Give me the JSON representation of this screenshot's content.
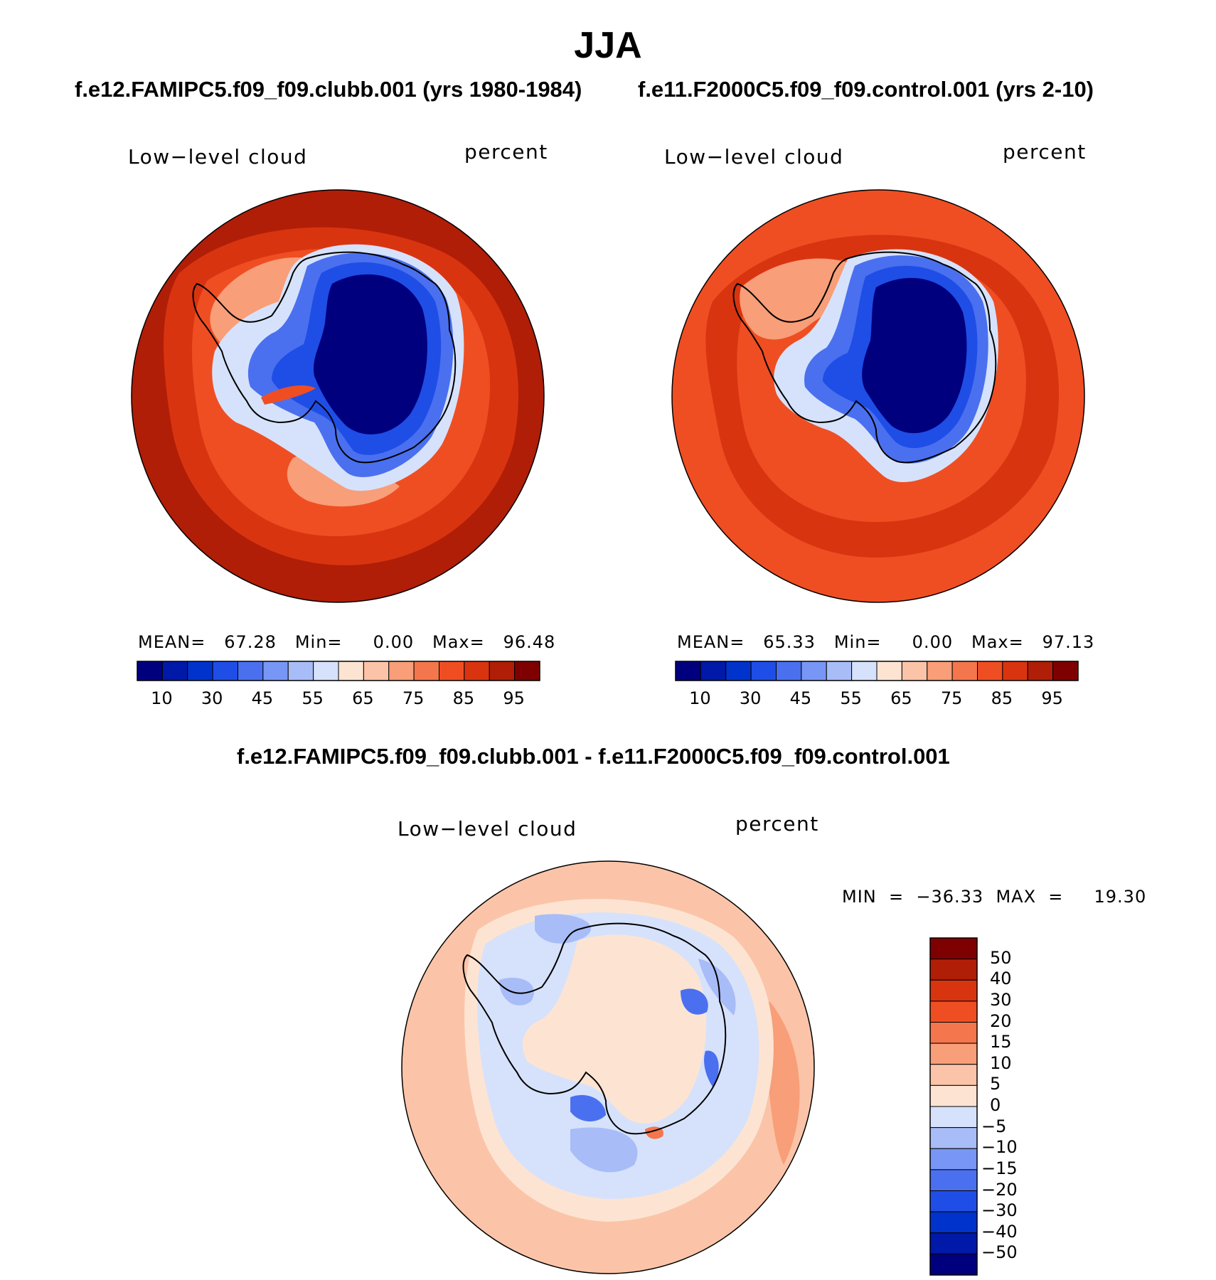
{
  "header": {
    "title": "JJA",
    "case_a": "f.e12.FAMIPC5.f09_f09.clubb.001 (yrs 1980-1984)",
    "case_b": "f.e11.F2000C5.f09_f09.control.001 (yrs 2-10)",
    "difference": "f.e12.FAMIPC5.f09_f09.clubb.001 - f.e11.F2000C5.f09_f09.control.001"
  },
  "panels": {
    "left": {
      "variable": "Low−level cloud",
      "units": "percent",
      "stats": "MEAN=   67.28   Min=     0.00   Max=   96.48",
      "mean": 67.28,
      "min": 0.0,
      "max": 96.48
    },
    "right": {
      "variable": "Low−level cloud",
      "units": "percent",
      "stats": "MEAN=   65.33   Min=     0.00   Max=   97.13",
      "mean": 65.33,
      "min": 0.0,
      "max": 97.13
    },
    "diff": {
      "variable": "Low−level cloud",
      "units": "percent",
      "stats": "MIN  =  −36.33  MAX  =     19.30",
      "min": -36.33,
      "max": 19.3
    }
  },
  "colorbars": {
    "abs": {
      "tick_labels": [
        "10",
        "30",
        "45",
        "55",
        "65",
        "75",
        "85",
        "95"
      ],
      "colors": [
        "#00007f",
        "#0019a8",
        "#0033cc",
        "#1f4ee6",
        "#4a70f0",
        "#7896f5",
        "#a8bcf7",
        "#d6e2fb",
        "#fde4d2",
        "#fbc4a8",
        "#f89e78",
        "#f4764c",
        "#ef4e23",
        "#d93410",
        "#b01e07",
        "#7f0000"
      ]
    },
    "diff": {
      "tick_labels": [
        "50",
        "40",
        "30",
        "20",
        "15",
        "10",
        "5",
        "0",
        "−5",
        "−10",
        "−15",
        "−20",
        "−30",
        "−40",
        "−50"
      ],
      "colors": [
        "#7f0000",
        "#b01e07",
        "#d93410",
        "#ef4e23",
        "#f4764c",
        "#f89e78",
        "#fbc4a8",
        "#fde4d2",
        "#d6e2fb",
        "#a8bcf7",
        "#7896f5",
        "#4a70f0",
        "#1f4ee6",
        "#0033cc",
        "#0019a8",
        "#00007f"
      ]
    }
  },
  "map_colors": {
    "ocean_dark": "#b01e07",
    "ocean_mid": "#d93410",
    "ocean_light": "#ef4e23",
    "pale_orange": "#f89e78",
    "ice_edge_light": "#d6e2fb",
    "ice_mid": "#4a70f0",
    "ice_blue": "#1f4ee6",
    "interior": "#00007f",
    "diff_ocean": "#fbc4a8",
    "diff_ring": "#a8bcf7",
    "diff_interior": "#fde4d2",
    "coast_line": "#000000"
  }
}
